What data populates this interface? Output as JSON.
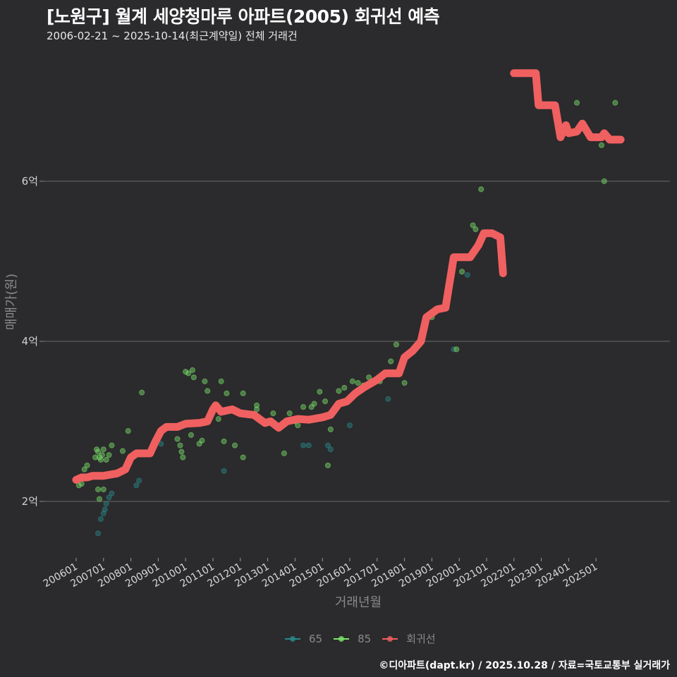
{
  "header": {
    "title": "[노원구] 월계 세양청마루 아파트(2005) 회귀선 예측",
    "subtitle": "2006-02-21 ~ 2025-10-14(최근계약일) 전체 거래건"
  },
  "legend": [
    {
      "label": "65",
      "color": "#2a8a8a"
    },
    {
      "label": "85",
      "color": "#7be36b"
    },
    {
      "label": "회귀선",
      "color": "#f06060"
    }
  ],
  "footer": "©디아파트(dapt.kr) / 2025.10.28 / 자료=국토교통부 실거래가",
  "chart_data": {
    "type": "scatter+line",
    "title": "[노원구] 월계 세양청마루 아파트(2005) 회귀선 예측",
    "subtitle": "2006-02-21 ~ 2025-10-14(최근계약일) 전체 거래건",
    "xlabel": "거래년월",
    "ylabel": "매매가(원)",
    "x_ticks": [
      "200601",
      "200701",
      "200801",
      "200901",
      "201001",
      "201101",
      "201201",
      "201301",
      "201401",
      "201501",
      "201601",
      "201701",
      "201801",
      "201901",
      "202001",
      "202101",
      "202201",
      "202301",
      "202401",
      "202501"
    ],
    "y_ticks": [
      {
        "value": 2,
        "label": "2억"
      },
      {
        "value": 4,
        "label": "4억"
      },
      {
        "value": 6,
        "label": "6억"
      }
    ],
    "ylim": [
      1.3,
      7.5
    ],
    "units": "억원",
    "grid": "horizontal",
    "legend_position": "bottom",
    "series": [
      {
        "name": "65",
        "type": "scatter",
        "color": "#2a8a8a",
        "points": [
          [
            2006.8,
            1.6
          ],
          [
            2006.9,
            1.78
          ],
          [
            2007.0,
            1.85
          ],
          [
            2007.05,
            1.9
          ],
          [
            2007.1,
            1.97
          ],
          [
            2007.2,
            2.05
          ],
          [
            2007.3,
            2.1
          ],
          [
            2008.2,
            2.2
          ],
          [
            2008.3,
            2.26
          ],
          [
            2009.1,
            2.72
          ],
          [
            2011.4,
            2.38
          ],
          [
            2014.3,
            2.7
          ],
          [
            2014.5,
            2.7
          ],
          [
            2015.2,
            2.7
          ],
          [
            2015.3,
            2.65
          ],
          [
            2016.0,
            2.95
          ],
          [
            2017.4,
            3.28
          ],
          [
            2019.8,
            3.9
          ],
          [
            2020.3,
            4.83
          ]
        ]
      },
      {
        "name": "85",
        "type": "scatter",
        "color": "#7be36b",
        "points": [
          [
            2006.1,
            2.2
          ],
          [
            2006.2,
            2.22
          ],
          [
            2006.3,
            2.4
          ],
          [
            2006.4,
            2.45
          ],
          [
            2006.7,
            2.55
          ],
          [
            2006.75,
            2.65
          ],
          [
            2006.8,
            2.62
          ],
          [
            2006.85,
            2.55
          ],
          [
            2006.9,
            2.52
          ],
          [
            2006.95,
            2.58
          ],
          [
            2007.0,
            2.65
          ],
          [
            2007.1,
            2.52
          ],
          [
            2007.2,
            2.58
          ],
          [
            2007.3,
            2.7
          ],
          [
            2006.8,
            2.15
          ],
          [
            2006.85,
            2.03
          ],
          [
            2007.0,
            2.15
          ],
          [
            2007.7,
            2.63
          ],
          [
            2007.9,
            2.88
          ],
          [
            2008.4,
            3.36
          ],
          [
            2009.6,
            2.93
          ],
          [
            2009.7,
            2.78
          ],
          [
            2009.8,
            2.7
          ],
          [
            2009.85,
            2.62
          ],
          [
            2009.9,
            2.55
          ],
          [
            2010.0,
            3.62
          ],
          [
            2010.1,
            3.6
          ],
          [
            2010.2,
            2.83
          ],
          [
            2010.25,
            3.64
          ],
          [
            2010.3,
            3.55
          ],
          [
            2010.5,
            2.72
          ],
          [
            2010.6,
            2.76
          ],
          [
            2010.7,
            3.5
          ],
          [
            2010.8,
            3.38
          ],
          [
            2011.2,
            3.03
          ],
          [
            2011.3,
            3.5
          ],
          [
            2011.4,
            2.75
          ],
          [
            2011.5,
            3.35
          ],
          [
            2011.8,
            2.7
          ],
          [
            2012.1,
            3.35
          ],
          [
            2012.6,
            3.2
          ],
          [
            2012.6,
            3.15
          ],
          [
            2012.1,
            2.55
          ],
          [
            2013.2,
            3.1
          ],
          [
            2013.6,
            2.6
          ],
          [
            2013.8,
            3.1
          ],
          [
            2014.0,
            3.0
          ],
          [
            2014.1,
            2.95
          ],
          [
            2014.3,
            3.18
          ],
          [
            2014.6,
            3.18
          ],
          [
            2014.7,
            3.22
          ],
          [
            2014.9,
            3.37
          ],
          [
            2015.1,
            3.25
          ],
          [
            2015.2,
            2.45
          ],
          [
            2015.3,
            2.9
          ],
          [
            2015.6,
            3.38
          ],
          [
            2015.8,
            3.42
          ],
          [
            2016.1,
            3.5
          ],
          [
            2016.3,
            3.48
          ],
          [
            2016.5,
            3.45
          ],
          [
            2016.7,
            3.55
          ],
          [
            2017.1,
            3.5
          ],
          [
            2017.5,
            3.75
          ],
          [
            2017.7,
            3.96
          ],
          [
            2018.0,
            3.48
          ],
          [
            2019.0,
            4.3
          ],
          [
            2019.9,
            3.9
          ],
          [
            2020.1,
            4.87
          ],
          [
            2020.5,
            5.45
          ],
          [
            2020.6,
            5.4
          ],
          [
            2020.8,
            5.9
          ],
          [
            2024.3,
            6.98
          ],
          [
            2025.0,
            6.55
          ],
          [
            2025.2,
            6.45
          ],
          [
            2025.3,
            6.0
          ],
          [
            2025.7,
            6.98
          ]
        ]
      },
      {
        "name": "회귀선",
        "type": "line",
        "color": "#f06060",
        "points": [
          [
            2006.0,
            2.27
          ],
          [
            2006.2,
            2.3
          ],
          [
            2006.4,
            2.3
          ],
          [
            2006.6,
            2.32
          ],
          [
            2007.0,
            2.32
          ],
          [
            2007.5,
            2.35
          ],
          [
            2007.8,
            2.4
          ],
          [
            2008.0,
            2.55
          ],
          [
            2008.2,
            2.6
          ],
          [
            2008.7,
            2.6
          ],
          [
            2008.9,
            2.75
          ],
          [
            2009.1,
            2.88
          ],
          [
            2009.3,
            2.93
          ],
          [
            2009.7,
            2.93
          ],
          [
            2010.0,
            2.97
          ],
          [
            2010.5,
            2.98
          ],
          [
            2010.8,
            3.0
          ],
          [
            2011.0,
            3.15
          ],
          [
            2011.1,
            3.2
          ],
          [
            2011.3,
            3.12
          ],
          [
            2011.7,
            3.15
          ],
          [
            2012.0,
            3.1
          ],
          [
            2012.5,
            3.08
          ],
          [
            2012.9,
            2.98
          ],
          [
            2013.1,
            3.0
          ],
          [
            2013.4,
            2.92
          ],
          [
            2013.7,
            3.0
          ],
          [
            2014.1,
            3.03
          ],
          [
            2014.5,
            3.02
          ],
          [
            2015.0,
            3.05
          ],
          [
            2015.3,
            3.08
          ],
          [
            2015.6,
            3.22
          ],
          [
            2015.9,
            3.25
          ],
          [
            2016.2,
            3.35
          ],
          [
            2016.5,
            3.42
          ],
          [
            2016.8,
            3.48
          ],
          [
            2017.0,
            3.52
          ],
          [
            2017.3,
            3.6
          ],
          [
            2017.8,
            3.6
          ],
          [
            2018.0,
            3.8
          ],
          [
            2018.3,
            3.88
          ],
          [
            2018.6,
            4.0
          ],
          [
            2018.8,
            4.3
          ],
          [
            2019.2,
            4.4
          ],
          [
            2019.5,
            4.42
          ],
          [
            2019.8,
            5.05
          ],
          [
            2020.4,
            5.05
          ],
          [
            2020.7,
            5.2
          ],
          [
            2020.9,
            5.35
          ],
          [
            2021.2,
            5.35
          ],
          [
            2021.5,
            5.3
          ],
          [
            2021.6,
            4.85
          ],
          [
            2022.0,
            7.35
          ],
          [
            2022.8,
            7.35
          ],
          [
            2022.9,
            6.95
          ],
          [
            2023.5,
            6.95
          ],
          [
            2023.7,
            6.55
          ],
          [
            2023.9,
            6.7
          ],
          [
            2024.0,
            6.6
          ],
          [
            2024.3,
            6.62
          ],
          [
            2024.5,
            6.72
          ],
          [
            2024.8,
            6.55
          ],
          [
            2025.2,
            6.55
          ],
          [
            2025.3,
            6.6
          ],
          [
            2025.5,
            6.52
          ],
          [
            2025.9,
            6.52
          ]
        ]
      }
    ]
  }
}
